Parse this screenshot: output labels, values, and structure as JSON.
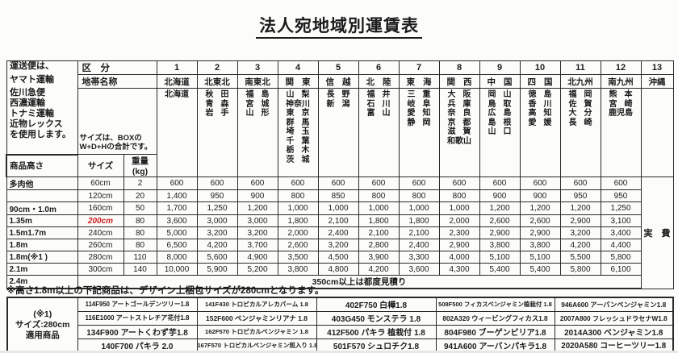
{
  "title": "法人宛地域別運賃表",
  "sidebar": {
    "lines": [
      "運送便は、",
      "ヤマト運輸",
      "佐川急便",
      "西濃運輸",
      "トナミ運輸",
      "近物レックス",
      "を使用します。"
    ]
  },
  "table": {
    "kubun_label": "区　分",
    "chitai_label": "地帯名称",
    "size_note": [
      "サイズは、BOXの",
      "W+D+Hの合計です。"
    ],
    "height_label": "商品高さ",
    "size_label": "サイズ",
    "weight_label": "重量(kg)",
    "okinawa_fee": "実　費",
    "zones": [
      {
        "no": "1",
        "name": "北海道",
        "prefs": [
          "北海道"
        ]
      },
      {
        "no": "2",
        "name": "北東北",
        "prefs": [
          "秋田",
          "青森",
          "岩手"
        ]
      },
      {
        "no": "3",
        "name": "南東北",
        "prefs": [
          "福島",
          "宮城",
          "山形"
        ]
      },
      {
        "no": "4",
        "name": "関東",
        "prefs": [
          "山梨",
          "神奈川",
          "東京",
          "群馬",
          "埼玉",
          "千葉",
          "栃木",
          "茨城"
        ]
      },
      {
        "no": "5",
        "name": "信越",
        "prefs": [
          "長野",
          "新潟"
        ]
      },
      {
        "no": "6",
        "name": "北陸",
        "prefs": [
          "福井",
          "石川",
          "富山"
        ]
      },
      {
        "no": "7",
        "name": "東海",
        "prefs": [
          "三重",
          "岐阜",
          "愛知",
          "静岡"
        ]
      },
      {
        "no": "8",
        "name": "関西",
        "prefs": [
          "大阪",
          "兵庫",
          "奈良",
          "京都",
          "滋賀",
          "和歌山"
        ]
      },
      {
        "no": "9",
        "name": "中国",
        "prefs": [
          "岡山",
          "鳥取",
          "広島",
          "島根",
          "山口"
        ]
      },
      {
        "no": "10",
        "name": "四国",
        "prefs": [
          "徳島",
          "香川",
          "高知",
          "愛媛"
        ]
      },
      {
        "no": "11",
        "name": "北九州",
        "prefs": [
          "福岡",
          "佐賀",
          "大分",
          "長崎"
        ]
      },
      {
        "no": "12",
        "name": "南九州",
        "prefs": [
          "熊本",
          "宮崎",
          "鹿児島"
        ]
      },
      {
        "no": "13",
        "name": "沖縄",
        "prefs": []
      }
    ],
    "rows": [
      {
        "height": "多肉他",
        "size": "60cm",
        "size_red": false,
        "weight": "2",
        "values": [
          "600",
          "600",
          "600",
          "600",
          "600",
          "600",
          "600",
          "600",
          "600",
          "600",
          "600",
          "600"
        ]
      },
      {
        "height": "",
        "size": "120cm",
        "size_red": false,
        "weight": "20",
        "values": [
          "1,400",
          "950",
          "900",
          "800",
          "850",
          "800",
          "800",
          "800",
          "900",
          "900",
          "950",
          "950"
        ]
      },
      {
        "height": "90cm・1.0m",
        "size": "160cm",
        "size_red": false,
        "weight": "50",
        "values": [
          "1,700",
          "1,250",
          "1,200",
          "1,000",
          "1,000",
          "1,000",
          "1,000",
          "1,000",
          "1,200",
          "1,200",
          "1,200",
          "1,250"
        ]
      },
      {
        "height": "1.35m",
        "size": "200cm",
        "size_red": true,
        "weight": "80",
        "values": [
          "3,600",
          "3,000",
          "3,000",
          "1,800",
          "2,100",
          "1,800",
          "1,800",
          "2,000",
          "2,600",
          "2,600",
          "2,900",
          "3,100"
        ]
      },
      {
        "height": "1.5m1.7m",
        "size": "240cm",
        "size_red": false,
        "weight": "80",
        "values": [
          "5,000",
          "3,200",
          "3,200",
          "2,000",
          "2,400",
          "2,100",
          "2,100",
          "2,300",
          "2,900",
          "2,900",
          "3,200",
          "3,400"
        ]
      },
      {
        "height": "1.8m",
        "size": "260cm",
        "size_red": false,
        "weight": "80",
        "values": [
          "6,500",
          "4,200",
          "3,700",
          "2,600",
          "3,200",
          "2,800",
          "2,400",
          "2,900",
          "3,800",
          "3,800",
          "4,200",
          "4,400"
        ]
      },
      {
        "height": "1.8m(※1 )",
        "size": "280cm",
        "size_red": false,
        "weight": "110",
        "values": [
          "8,000",
          "5,600",
          "4,900",
          "3,500",
          "4,500",
          "3,900",
          "3,300",
          "4,000",
          "5,100",
          "5,100",
          "5,500",
          "5,800"
        ]
      },
      {
        "height": "2.1m",
        "size": "300cm",
        "size_red": false,
        "weight": "140",
        "values": [
          "10,000",
          "5,900",
          "5,200",
          "3,800",
          "4,800",
          "4,200",
          "3,600",
          "4,300",
          "5,400",
          "5,400",
          "5,800",
          "6,100"
        ]
      }
    ],
    "over_row": {
      "height": "2.4m",
      "note": "350cm以上は都度見積り"
    }
  },
  "footnote": "※高さ1.8m以上の下記商品は、デザイン上梱包サイズが280cmとなります。",
  "products": {
    "header": [
      "(※1)",
      "サイズ:280cm",
      "適用商品"
    ],
    "columns": [
      [
        "114F950 アートゴールデンツリー1.8",
        "116E1000 アートストレチア花付1.8",
        "134F900 アートくわず芋1.8",
        "140F700 パキラ 2.0"
      ],
      [
        "141F430 トロピカルアレカパーム 1.8",
        "152F600 ベンジャミンリアナ 1.8",
        "162F570 トロピカルベンジャミン 1.8",
        "167F570 トロピカルベンジャミン斑入り 1.8"
      ],
      [
        "402F750 白樺1.8",
        "403G450 モンステラ 1.8",
        "412F500 パキラ 植栽付 1.8",
        "501F570 シュロチク1.8"
      ],
      [
        "508F500 フィカスベンジャミン植栽付 1.8",
        "802A320 ウィービングフィカス1.8",
        "804F980 ブーゲンビリア1.8",
        "941A600 アーバンパキラ1.8"
      ],
      [
        "946A600 アーバンベンジャミン1.8",
        "2007A800 フレッシュドラセナW1.8",
        "2014A300 ベンジャミン1.8",
        "2020A580 コーヒーツリー1.8"
      ]
    ]
  },
  "colors": {
    "accent_red": "#cc1f1f",
    "text": "#1b1b1b",
    "border": "#2a2a2a"
  }
}
